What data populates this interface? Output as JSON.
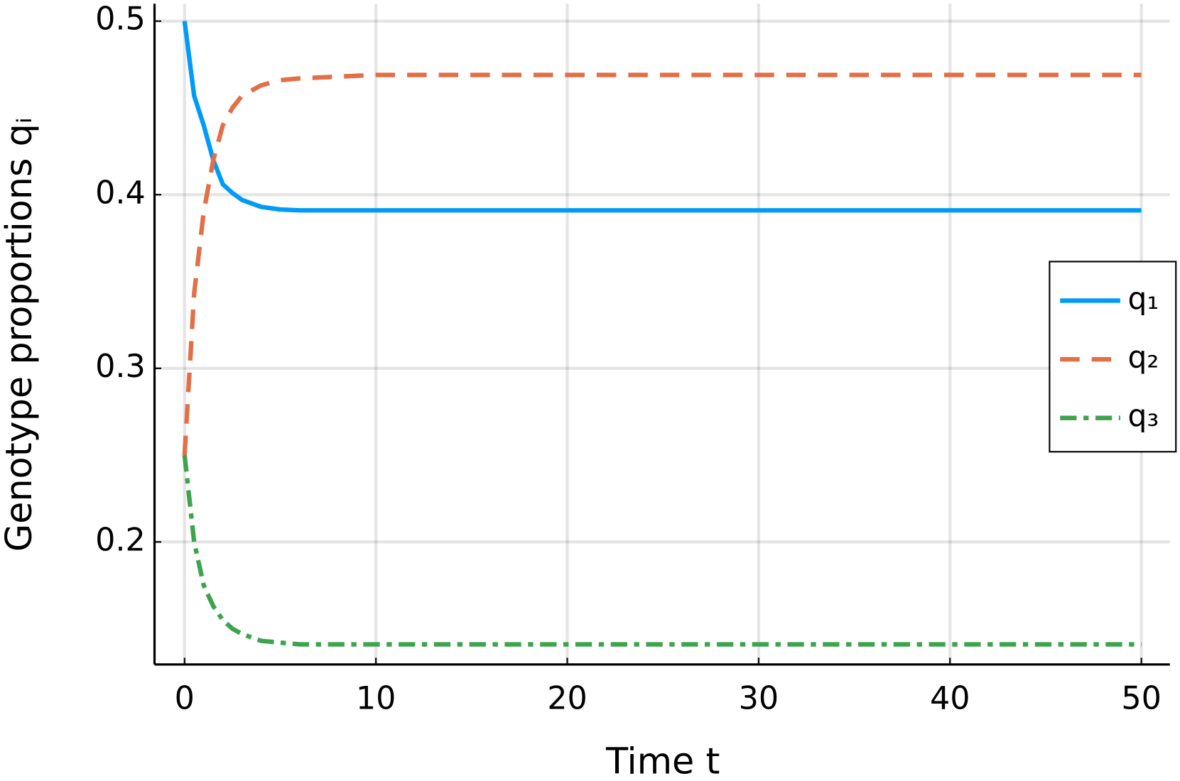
{
  "chart_data": {
    "type": "line",
    "xlabel": "Time t",
    "ylabel": "Genotype proportions qᵢ",
    "x": [
      0,
      0.5,
      1,
      1.5,
      2,
      2.5,
      3,
      4,
      5,
      6,
      8,
      10,
      15,
      20,
      30,
      40,
      50
    ],
    "series": [
      {
        "name": "q₁",
        "color": "#009af9",
        "linestyle": "solid",
        "values": [
          0.5,
          0.457,
          0.44,
          0.42,
          0.406,
          0.401,
          0.397,
          0.393,
          0.3915,
          0.391,
          0.391,
          0.391,
          0.391,
          0.391,
          0.391,
          0.391,
          0.391
        ]
      },
      {
        "name": "q₂",
        "color": "#e26f46",
        "linestyle": "dash",
        "values": [
          0.25,
          0.343,
          0.39,
          0.42,
          0.44,
          0.45,
          0.457,
          0.463,
          0.466,
          0.467,
          0.468,
          0.469,
          0.469,
          0.469,
          0.469,
          0.469,
          0.469
        ]
      },
      {
        "name": "q₃",
        "color": "#3da44d",
        "linestyle": "dashdot",
        "values": [
          0.25,
          0.2,
          0.175,
          0.163,
          0.155,
          0.15,
          0.147,
          0.143,
          0.142,
          0.141,
          0.141,
          0.141,
          0.141,
          0.141,
          0.141,
          0.141,
          0.141
        ]
      }
    ],
    "xlim": [
      -1.57,
      51.49
    ],
    "ylim": [
      0.1294,
      0.51
    ],
    "xticks": [
      0,
      10,
      20,
      30,
      40,
      50
    ],
    "yticks": [
      0.2,
      0.3,
      0.4,
      0.5
    ],
    "grid": true,
    "legend": "right"
  }
}
